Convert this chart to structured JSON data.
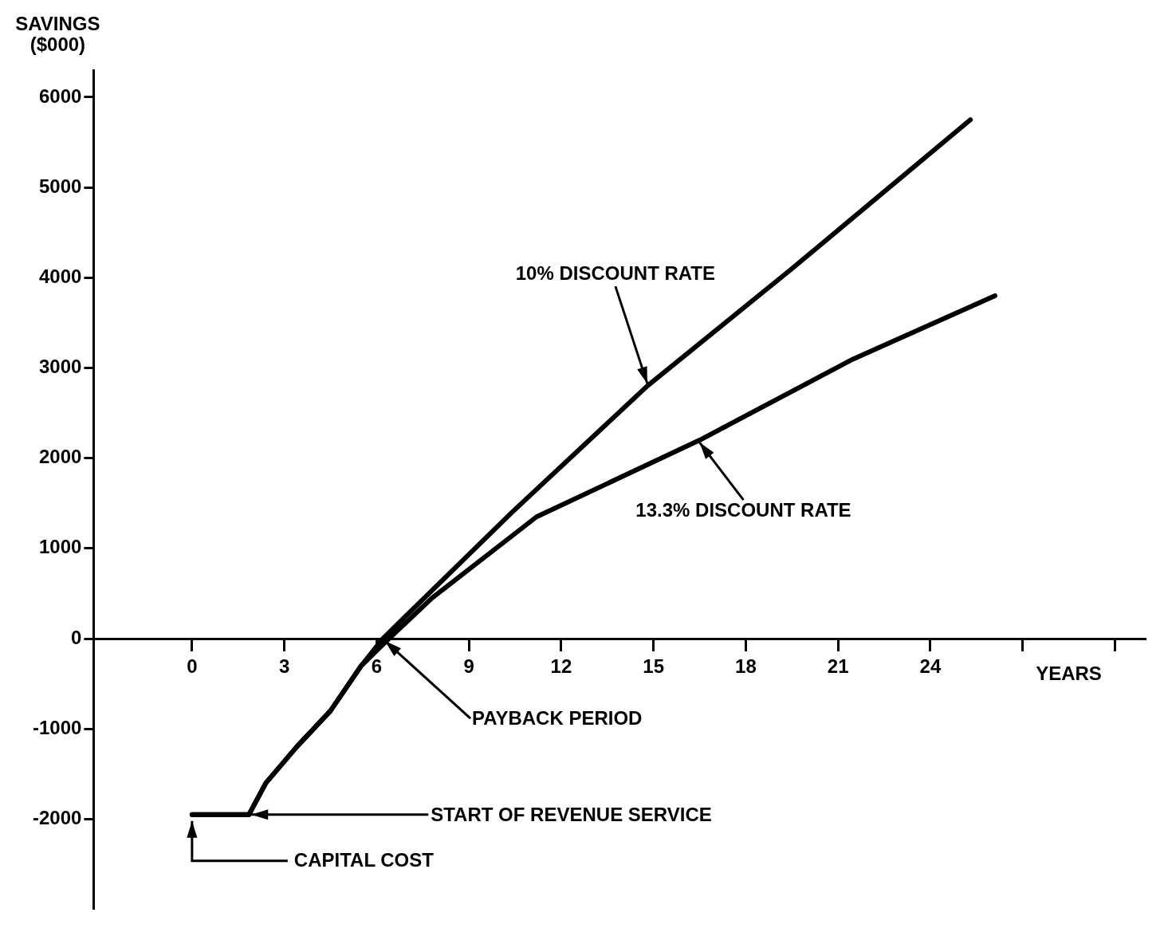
{
  "chart_data": {
    "type": "line",
    "ylabel": "SAVINGS ($000)",
    "xlabel": "YEARS",
    "xlim": [
      -3.2,
      31
    ],
    "xticks": [
      0,
      3,
      6,
      9,
      12,
      15,
      18,
      21,
      24,
      {
        "value": 27,
        "label": null
      },
      {
        "value": 30,
        "label": null
      }
    ],
    "ylim": [
      -3000,
      6300
    ],
    "yticks": [
      -2000,
      -1000,
      0,
      1000,
      2000,
      3000,
      4000,
      5000,
      6000
    ],
    "grid": false,
    "legend": false,
    "marker": "none",
    "line_style": "solid",
    "series": [
      {
        "name": "10% DISCOUNT RATE",
        "color": "#000000",
        "x": [
          0,
          1.85,
          2.4,
          3.4,
          4.5,
          5.5,
          6.2,
          10.4,
          14.8,
          19.5,
          25.3
        ],
        "values": [
          -1950,
          -1950,
          -1600,
          -1200,
          -800,
          -300,
          0,
          1400,
          2800,
          4100,
          5750
        ]
      },
      {
        "name": "13.3% DISCOUNT RATE",
        "color": "#000000",
        "x": [
          0,
          1.85,
          2.4,
          3.4,
          4.5,
          5.5,
          6.4,
          7.8,
          11.2,
          16.5,
          21.5,
          26.1
        ],
        "values": [
          -1950,
          -1950,
          -1600,
          -1200,
          -800,
          -300,
          0,
          450,
          1350,
          2200,
          3100,
          3800
        ]
      }
    ],
    "annotations": [
      {
        "text": "PAYBACK PERIOD",
        "x": 6.2,
        "y": 0
      },
      {
        "text": "START OF REVENUE SERVICE",
        "x": 1.85,
        "y": -1950
      },
      {
        "text": "CAPITAL COST",
        "x": 0,
        "y": -1950
      }
    ]
  }
}
